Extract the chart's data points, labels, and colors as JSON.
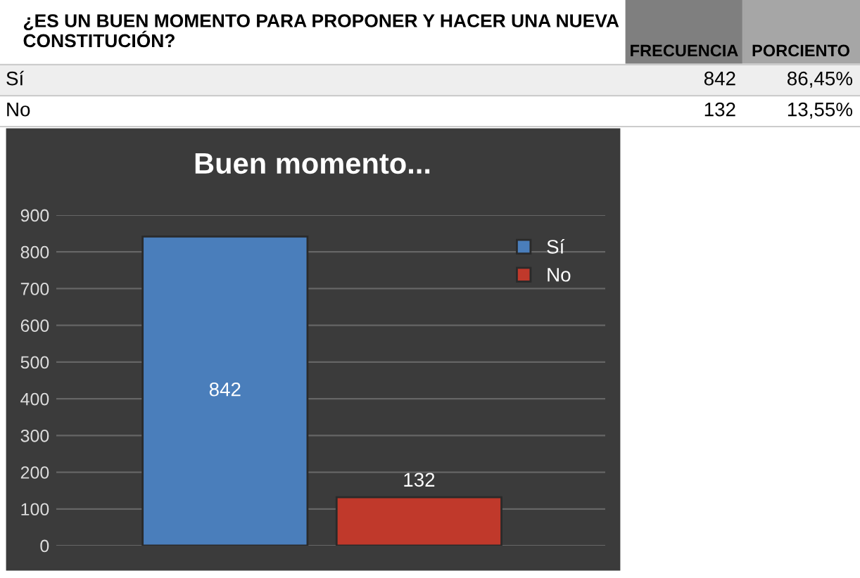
{
  "chart_data": {
    "type": "bar",
    "title": "Buen momento...",
    "categories": [
      null,
      null
    ],
    "series": [
      {
        "name": "Sí",
        "color": "#4a7ebb",
        "values": [
          842,
          null
        ]
      },
      {
        "name": "No",
        "color": "#c0392b",
        "values": [
          null,
          132
        ]
      }
    ],
    "ylim": [
      0,
      900
    ],
    "yticks": [
      0,
      100,
      200,
      300,
      400,
      500,
      600,
      700,
      800,
      900
    ],
    "grid": "y",
    "legend": "top right",
    "data_labels": true,
    "annotations": [
      "¿ES UN BUEN MOMENTO PARA PROPONER Y HACER UNA NUEVA CONSTITUCIÓN?",
      "FRECUENCIA",
      "PORCIENTO",
      "Sí",
      "842",
      "86,45%",
      "No",
      "132",
      "13,55%"
    ]
  }
}
